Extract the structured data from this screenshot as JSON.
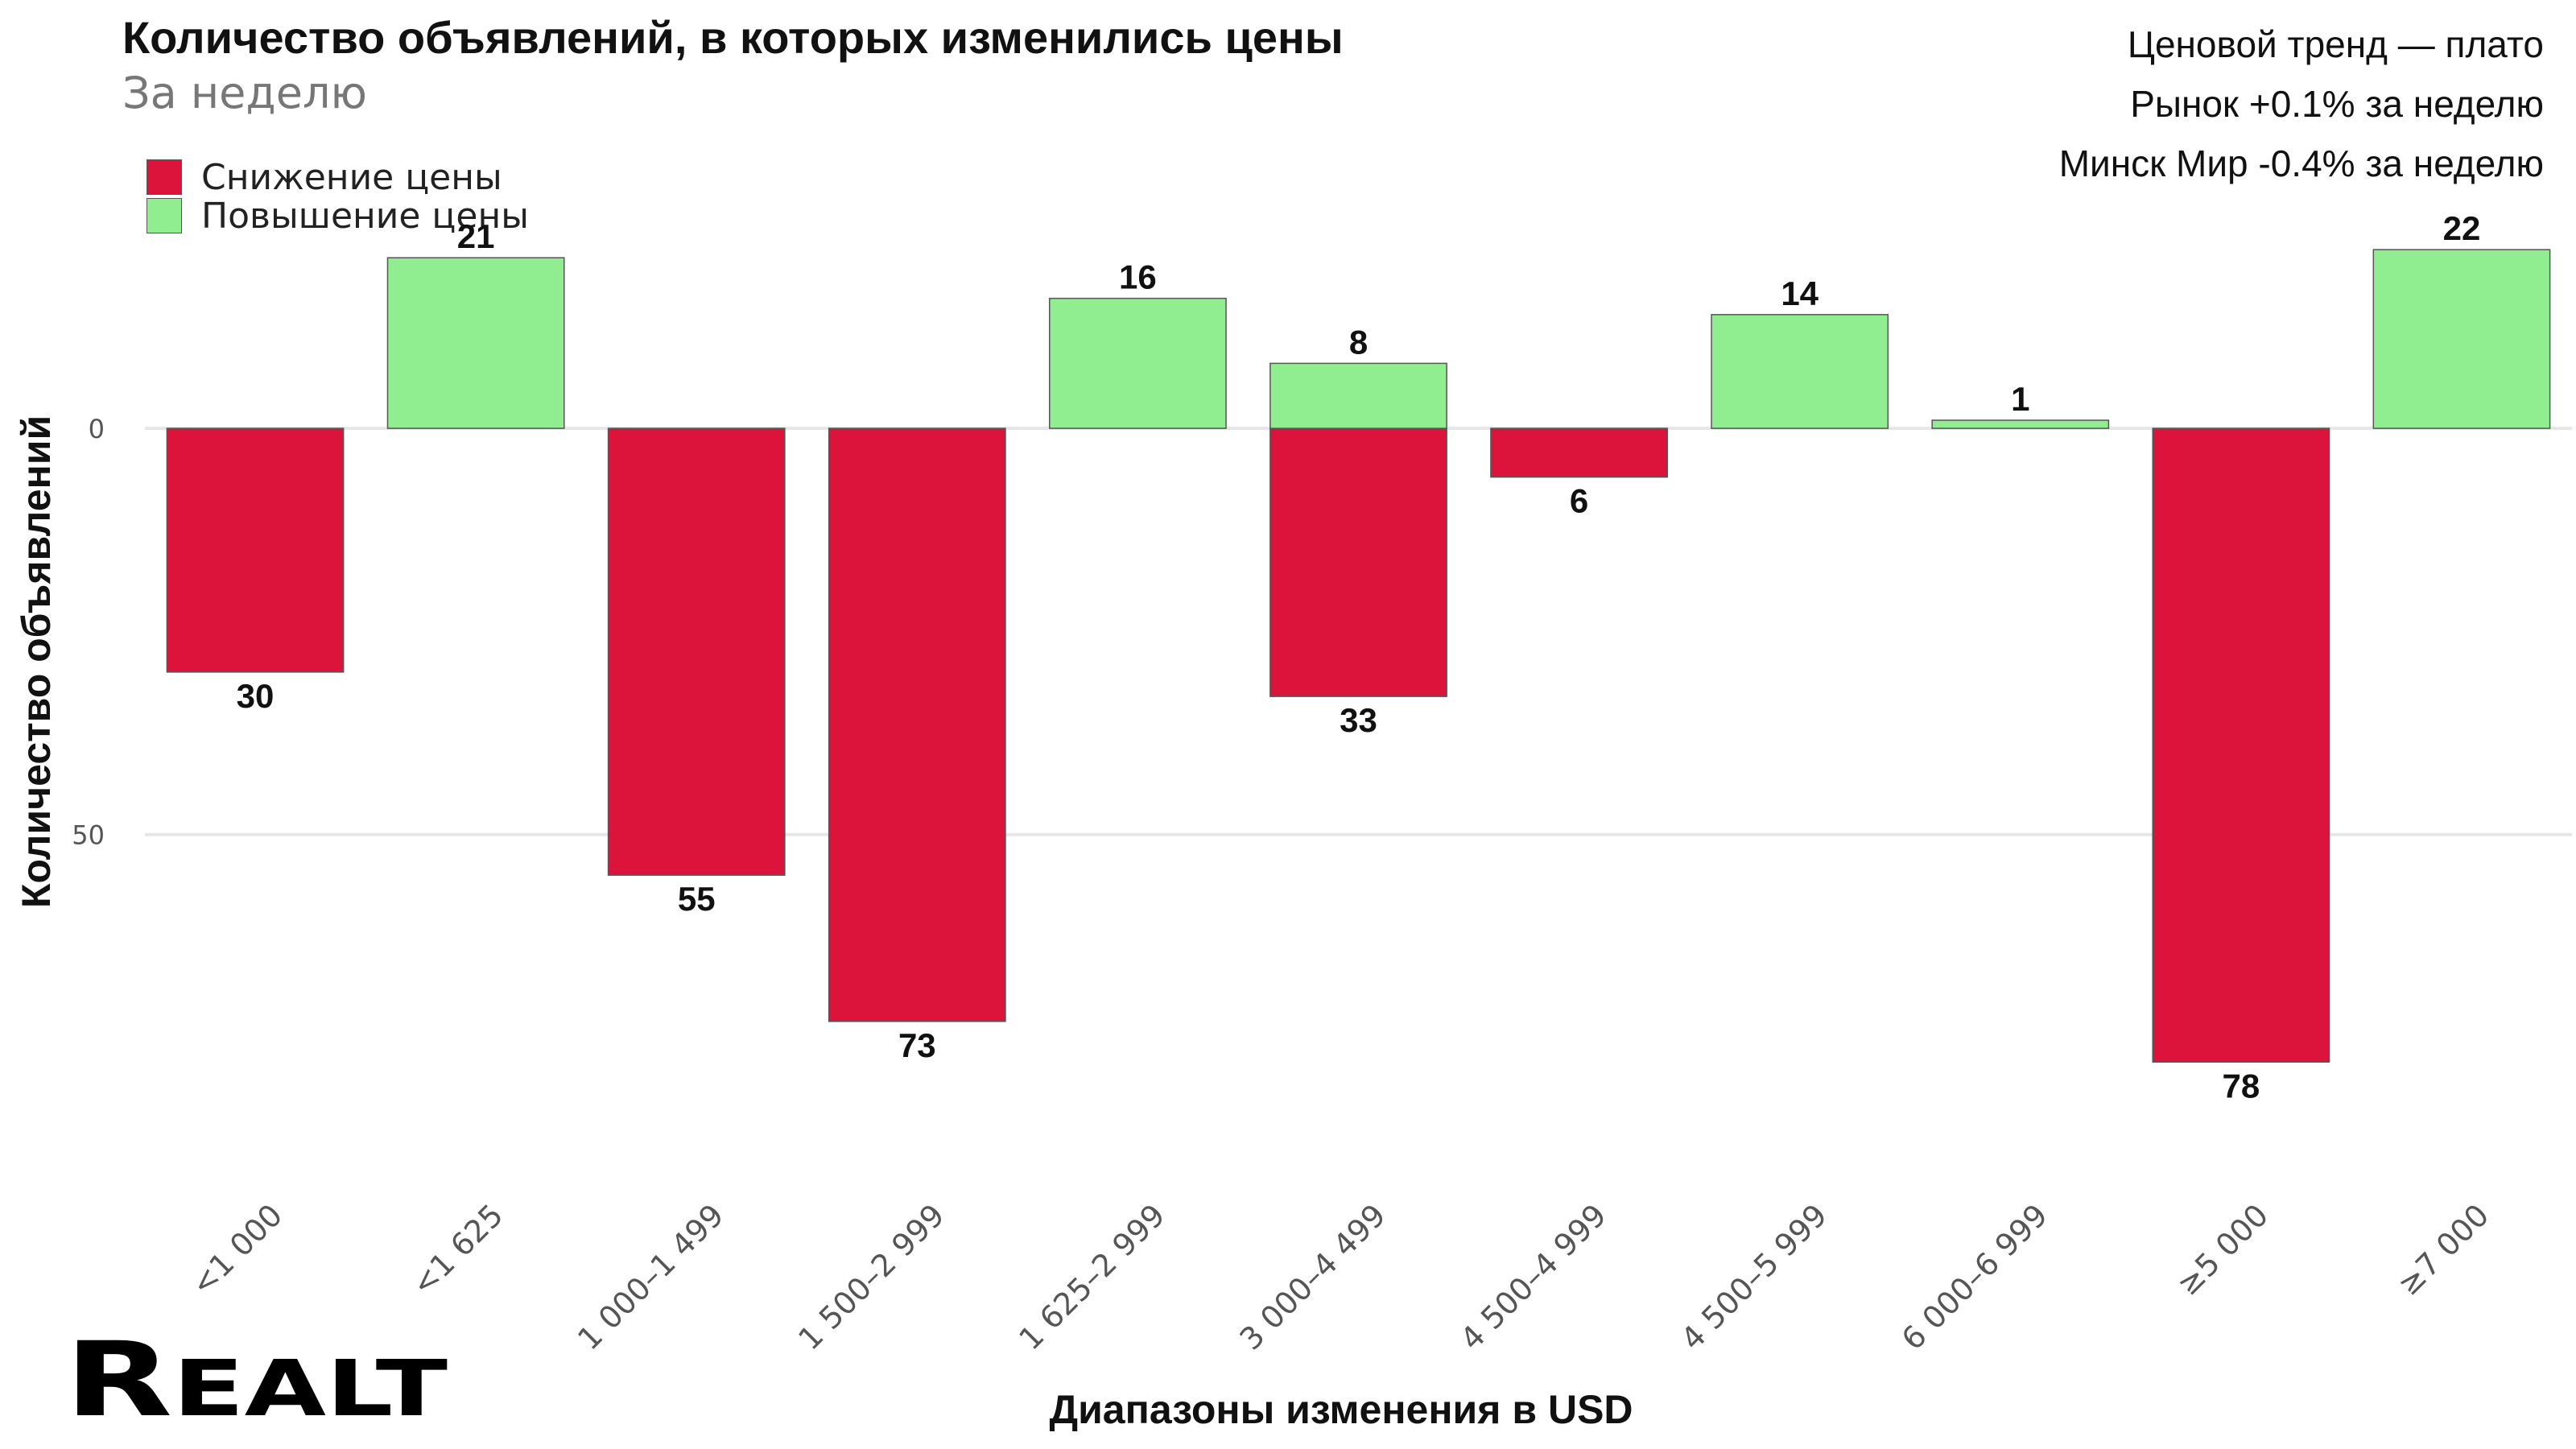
{
  "header": {
    "title": "Количество объявлений, в которых изменились цены",
    "subtitle": "За неделю"
  },
  "notes": [
    "Ценовой тренд — плато",
    "Рынок +0.1% за неделю",
    "Минск Мир -0.4% за неделю"
  ],
  "logo": {
    "text": "REALT"
  },
  "colors": {
    "decrease": "#dc143c",
    "increase": "#90ee90",
    "bar_border": "#555555",
    "grid": "#e6e6e6"
  },
  "chart_data": {
    "type": "bar",
    "categories": [
      "<1 000",
      "<1 625",
      "1 000–1 499",
      "1 500–2 999",
      "1 625–2 999",
      "3 000–4 499",
      "4 500–4 999",
      "4 500–5 999",
      "6 000–6 999",
      "≥5 000",
      "≥7 000"
    ],
    "series": [
      {
        "name": "Снижение цены",
        "direction": "down",
        "values": [
          30,
          null,
          55,
          73,
          null,
          33,
          6,
          null,
          null,
          78,
          null
        ]
      },
      {
        "name": "Повышение цены",
        "direction": "up",
        "values": [
          null,
          21,
          null,
          null,
          16,
          8,
          null,
          14,
          1,
          null,
          22
        ]
      }
    ],
    "xlabel": "Диапазоны изменения в USD",
    "ylabel": "Количество объявлений",
    "ylim": [
      -23,
      86
    ],
    "yticks": [
      0,
      50
    ],
    "grid": true,
    "legend": "top-left"
  }
}
